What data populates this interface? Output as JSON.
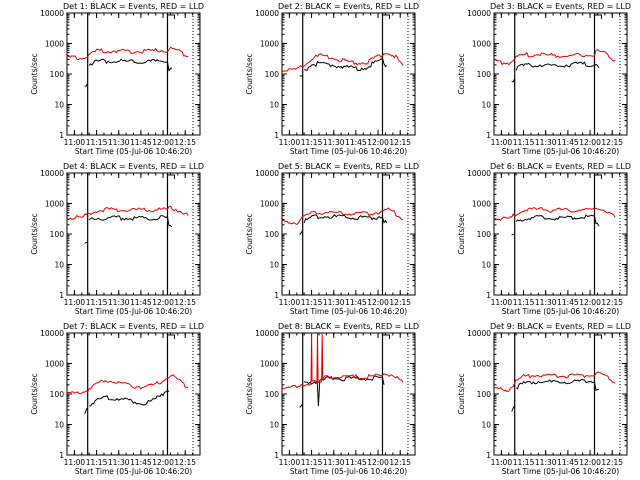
{
  "colors": {
    "events": "#000000",
    "lld": "#e00000",
    "axis": "#000000",
    "background": "#ffffff"
  },
  "chart_data": [
    {
      "type": "line",
      "title": "Det 1: BLACK = Events, RED = LLD",
      "xlabel": "Start Time (05-Jul-06 10:46:20)",
      "ylabel": "Counts/sec",
      "yscale": "log",
      "ylim": [
        1,
        10000
      ],
      "xlim_minutes": [
        50,
        95
      ],
      "x_tick_labels": [
        "11:00",
        "11:15",
        "11:30",
        "11:45",
        "12:00",
        "12:15"
      ],
      "y_tick_labels": [
        "1",
        "10",
        "100",
        "1000",
        "10000"
      ],
      "event_markers_min": [
        57,
        84
      ],
      "series": [
        {
          "key": "events",
          "x": [
            56,
            57,
            57.5,
            60,
            65,
            70,
            75,
            80,
            82,
            84,
            84.5,
            85.5
          ],
          "values": [
            40,
            50,
            220,
            250,
            270,
            255,
            255,
            260,
            270,
            260,
            150,
            160
          ],
          "segment_break_after": 1
        },
        {
          "key": "lld",
          "x": [
            50,
            55,
            57.5,
            60,
            65,
            70,
            75,
            80,
            82,
            84,
            84.5,
            88,
            91
          ],
          "values": [
            360,
            330,
            450,
            560,
            580,
            550,
            560,
            580,
            620,
            580,
            700,
            550,
            380
          ]
        }
      ]
    },
    {
      "type": "line",
      "title": "Det 2: BLACK = Events, RED = LLD",
      "xlabel": "Start Time (05-Jul-06 10:46:20)",
      "ylabel": "Counts/sec",
      "yscale": "log",
      "ylim": [
        1,
        10000
      ],
      "xlim_minutes": [
        50,
        95
      ],
      "x_tick_labels": [
        "11:00",
        "11:15",
        "11:30",
        "11:45",
        "12:00",
        "12:15"
      ],
      "y_tick_labels": [
        "1",
        "10",
        "100",
        "1000",
        "10000"
      ],
      "event_markers_min": [
        57,
        84
      ],
      "series": [
        {
          "key": "events",
          "x": [
            56,
            57,
            57.5,
            60,
            63,
            67,
            70,
            73,
            76,
            79,
            82,
            84,
            84.5,
            85.5
          ],
          "values": [
            75,
            85,
            130,
            200,
            230,
            200,
            180,
            160,
            150,
            170,
            260,
            300,
            200,
            190
          ],
          "segment_break_after": 1
        },
        {
          "key": "lld",
          "x": [
            50,
            54,
            57.5,
            60,
            63,
            67,
            70,
            73,
            76,
            79,
            82,
            84,
            86,
            88,
            91
          ],
          "values": [
            140,
            130,
            210,
            330,
            400,
            340,
            280,
            240,
            230,
            250,
            350,
            450,
            500,
            400,
            190
          ]
        }
      ]
    },
    {
      "type": "line",
      "title": "Det 3: BLACK = Events, RED = LLD",
      "xlabel": "Start Time (05-Jul-06 10:46:20)",
      "ylabel": "Counts/sec",
      "yscale": "log",
      "ylim": [
        1,
        10000
      ],
      "xlim_minutes": [
        50,
        95
      ],
      "x_tick_labels": [
        "11:00",
        "11:15",
        "11:30",
        "11:45",
        "12:00",
        "12:15"
      ],
      "y_tick_labels": [
        "1",
        "10",
        "100",
        "1000",
        "10000"
      ],
      "event_markers_min": [
        57,
        84
      ],
      "series": [
        {
          "key": "events",
          "x": [
            56,
            57,
            57.5,
            60,
            65,
            70,
            75,
            80,
            84,
            84.5,
            85.5
          ],
          "values": [
            60,
            70,
            150,
            190,
            200,
            190,
            200,
            210,
            200,
            240,
            160
          ],
          "segment_break_after": 1
        },
        {
          "key": "lld",
          "x": [
            50,
            55,
            57.5,
            60,
            65,
            70,
            75,
            80,
            84,
            84.5,
            88,
            91
          ],
          "values": [
            250,
            230,
            330,
            420,
            450,
            400,
            400,
            420,
            400,
            560,
            450,
            280
          ]
        }
      ]
    },
    {
      "type": "line",
      "title": "Det 4: BLACK = Events, RED = LLD",
      "xlabel": "Start Time (05-Jul-06 10:46:20)",
      "ylabel": "Counts/sec",
      "yscale": "log",
      "ylim": [
        1,
        10000
      ],
      "xlim_minutes": [
        50,
        95
      ],
      "x_tick_labels": [
        "11:00",
        "11:15",
        "11:30",
        "11:45",
        "12:00",
        "12:15"
      ],
      "y_tick_labels": [
        "1",
        "10",
        "100",
        "1000",
        "10000"
      ],
      "event_markers_min": [
        57,
        84
      ],
      "series": [
        {
          "key": "events",
          "x": [
            56,
            57,
            57.5,
            60,
            65,
            70,
            75,
            80,
            84,
            84.5,
            85.5
          ],
          "values": [
            45,
            55,
            280,
            330,
            340,
            330,
            330,
            340,
            340,
            180,
            170
          ],
          "segment_break_after": 1
        },
        {
          "key": "lld",
          "x": [
            50,
            55,
            57.5,
            60,
            65,
            70,
            75,
            80,
            84,
            84.5,
            88,
            91
          ],
          "values": [
            360,
            340,
            470,
            600,
            640,
            610,
            610,
            630,
            650,
            760,
            600,
            400
          ]
        }
      ]
    },
    {
      "type": "line",
      "title": "Det 5: BLACK = Events, RED = LLD",
      "xlabel": "Start Time (05-Jul-06 10:46:20)",
      "ylabel": "Counts/sec",
      "yscale": "log",
      "ylim": [
        1,
        10000
      ],
      "xlim_minutes": [
        50,
        95
      ],
      "x_tick_labels": [
        "11:00",
        "11:15",
        "11:30",
        "11:45",
        "12:00",
        "12:15"
      ],
      "y_tick_labels": [
        "1",
        "10",
        "100",
        "1000",
        "10000"
      ],
      "event_markers_min": [
        57,
        84
      ],
      "series": [
        {
          "key": "events",
          "x": [
            56,
            57,
            57.5,
            60,
            65,
            70,
            75,
            80,
            82,
            84,
            84.5,
            85.5
          ],
          "values": [
            100,
            130,
            260,
            350,
            380,
            360,
            340,
            340,
            350,
            400,
            250,
            230
          ],
          "segment_break_after": 1
        },
        {
          "key": "lld",
          "x": [
            50,
            55,
            57.5,
            60,
            65,
            70,
            75,
            80,
            82,
            84,
            86,
            88,
            91
          ],
          "values": [
            250,
            240,
            380,
            480,
            520,
            480,
            460,
            470,
            500,
            560,
            650,
            500,
            300
          ]
        }
      ]
    },
    {
      "type": "line",
      "title": "Det 6: BLACK = Events, RED = LLD",
      "xlabel": "Start Time (05-Jul-06 10:46:20)",
      "ylabel": "Counts/sec",
      "yscale": "log",
      "ylim": [
        1,
        10000
      ],
      "xlim_minutes": [
        50,
        95
      ],
      "x_tick_labels": [
        "11:00",
        "11:15",
        "11:30",
        "11:45",
        "12:00",
        "12:15"
      ],
      "y_tick_labels": [
        "1",
        "10",
        "100",
        "1000",
        "10000"
      ],
      "event_markers_min": [
        57,
        84
      ],
      "series": [
        {
          "key": "events",
          "x": [
            56,
            57,
            57.5,
            60,
            65,
            70,
            75,
            80,
            84,
            84.5,
            85.5
          ],
          "values": [
            80,
            100,
            250,
            320,
            350,
            330,
            340,
            350,
            360,
            220,
            180
          ],
          "segment_break_after": 1
        },
        {
          "key": "lld",
          "x": [
            50,
            55,
            57.5,
            60,
            65,
            70,
            75,
            80,
            84,
            84.5,
            88,
            91
          ],
          "values": [
            330,
            300,
            470,
            600,
            640,
            610,
            610,
            630,
            650,
            780,
            580,
            350
          ]
        }
      ]
    },
    {
      "type": "line",
      "title": "Det 7: BLACK = Events, RED = LLD",
      "xlabel": "Start Time (05-Jul-06 10:46:20)",
      "ylabel": "Counts/sec",
      "yscale": "log",
      "ylim": [
        1,
        10000
      ],
      "xlim_minutes": [
        50,
        95
      ],
      "x_tick_labels": [
        "11:00",
        "11:15",
        "11:30",
        "11:45",
        "12:00",
        "12:15"
      ],
      "y_tick_labels": [
        "1",
        "10",
        "100",
        "1000",
        "10000"
      ],
      "event_markers_min": [
        57,
        84
      ],
      "series": [
        {
          "key": "events",
          "x": [
            56,
            56.8,
            57.5,
            60,
            63,
            67,
            70,
            73,
            76,
            79,
            82,
            84,
            84.5
          ],
          "values": [
            25,
            35,
            45,
            60,
            80,
            70,
            65,
            55,
            50,
            60,
            90,
            150,
            120
          ],
          "segment_break_after": 1
        },
        {
          "key": "lld",
          "x": [
            50,
            53,
            56,
            58,
            60,
            63,
            67,
            70,
            73,
            76,
            79,
            82,
            84,
            86,
            88,
            91
          ],
          "values": [
            110,
            100,
            120,
            160,
            220,
            280,
            240,
            210,
            180,
            170,
            190,
            260,
            380,
            400,
            280,
            160
          ]
        }
      ]
    },
    {
      "type": "line",
      "title": "Det 8: BLACK = Events, RED = LLD",
      "xlabel": "Start Time (05-Jul-06 10:46:20)",
      "ylabel": "Counts/sec",
      "yscale": "log",
      "ylim": [
        1,
        10000
      ],
      "xlim_minutes": [
        50,
        95
      ],
      "x_tick_labels": [
        "11:00",
        "11:15",
        "11:30",
        "11:45",
        "12:00",
        "12:15"
      ],
      "y_tick_labels": [
        "1",
        "10",
        "100",
        "1000",
        "10000"
      ],
      "event_markers_min": [
        57,
        84
      ],
      "series": [
        {
          "key": "events",
          "x": [
            56,
            56.8,
            57.5,
            60,
            61.9,
            62.3,
            62.8,
            63.6,
            65,
            70,
            75,
            80,
            84,
            84.5
          ],
          "values": [
            35,
            45,
            250,
            250,
            260,
            45,
            280,
            320,
            330,
            320,
            320,
            330,
            340,
            200
          ],
          "segment_break_after": 1
        },
        {
          "key": "lld",
          "x": [
            50,
            55,
            57.5,
            59.8,
            60.0,
            60.2,
            61.8,
            62.0,
            62.2,
            63.4,
            63.6,
            63.8,
            65,
            70,
            75,
            80,
            84,
            84.5,
            88,
            91
          ],
          "values": [
            170,
            160,
            200,
            220,
            10000,
            240,
            230,
            10000,
            240,
            250,
            10000,
            300,
            380,
            370,
            360,
            380,
            400,
            480,
            400,
            240
          ]
        }
      ]
    },
    {
      "type": "line",
      "title": "Det 9: BLACK = Events, RED = LLD",
      "xlabel": "Start Time (05-Jul-06 10:46:20)",
      "ylabel": "Counts/sec",
      "yscale": "log",
      "ylim": [
        1,
        10000
      ],
      "xlim_minutes": [
        50,
        95
      ],
      "x_tick_labels": [
        "11:00",
        "11:15",
        "11:30",
        "11:45",
        "12:00",
        "12:15"
      ],
      "y_tick_labels": [
        "1",
        "10",
        "100",
        "1000",
        "10000"
      ],
      "event_markers_min": [
        57,
        84
      ],
      "series": [
        {
          "key": "events",
          "x": [
            56,
            56.8,
            57.5,
            60,
            65,
            70,
            75,
            80,
            84,
            84.5,
            85.5
          ],
          "values": [
            30,
            40,
            160,
            220,
            260,
            240,
            250,
            260,
            260,
            150,
            140
          ],
          "segment_break_after": 1
        },
        {
          "key": "lld",
          "x": [
            50,
            55,
            57.5,
            60,
            65,
            70,
            75,
            80,
            84,
            84.5,
            88,
            91
          ],
          "values": [
            150,
            140,
            260,
            380,
            420,
            390,
            390,
            410,
            420,
            520,
            400,
            230
          ]
        }
      ]
    }
  ]
}
